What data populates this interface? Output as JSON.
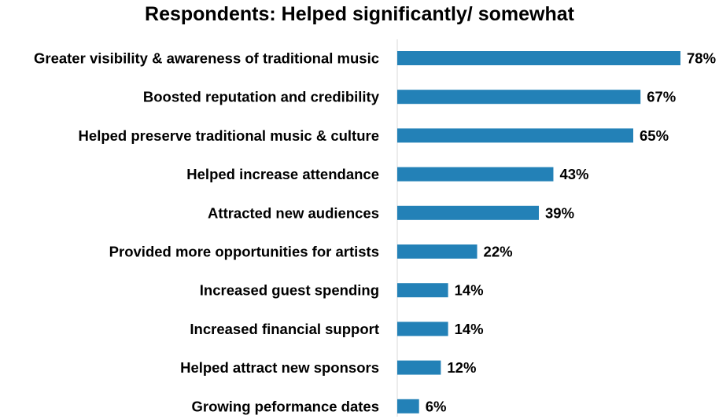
{
  "chart_data": {
    "type": "bar",
    "orientation": "horizontal",
    "title": "Respondents: Helped significantly/ somewhat",
    "xlabel": "",
    "ylabel": "",
    "categories": [
      "Greater visibility & awareness of traditional music",
      "Boosted reputation and credibility",
      "Helped preserve traditional music & culture",
      "Helped increase attendance",
      "Attracted new audiences",
      "Provided more opportunities for artists",
      "Increased guest spending",
      "Increased financial support",
      "Helped attract new sponsors",
      "Growing peformance dates"
    ],
    "values": [
      78,
      67,
      65,
      43,
      39,
      22,
      14,
      14,
      12,
      6
    ],
    "value_labels": [
      "78%",
      "67%",
      "65%",
      "43%",
      "39%",
      "22%",
      "14%",
      "14%",
      "12%",
      "6%"
    ],
    "xlim": [
      0,
      100
    ],
    "grid": false,
    "legend": "none",
    "bar_color": "#2381b7",
    "axis_color": "#d9d9d9"
  }
}
